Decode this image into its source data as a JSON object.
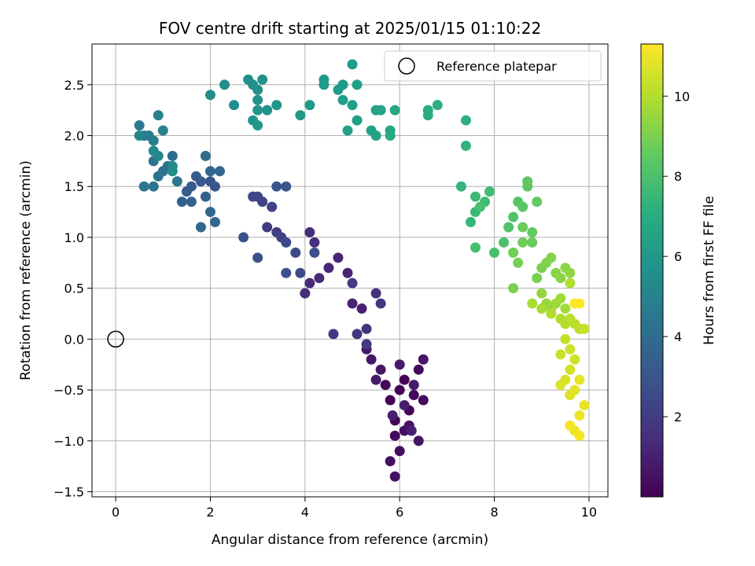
{
  "chart_data": {
    "type": "scatter",
    "title": "FOV centre drift starting at 2025/01/15 01:10:22",
    "xlabel": "Angular distance from reference (arcmin)",
    "ylabel": "Rotation from reference (arcmin)",
    "xlim": [
      -0.5,
      10.4
    ],
    "ylim": [
      -1.55,
      2.9
    ],
    "x_ticks": [
      0,
      2,
      4,
      6,
      8,
      10
    ],
    "x_tick_labels": [
      "0",
      "2",
      "4",
      "6",
      "8",
      "10"
    ],
    "y_ticks": [
      -1.5,
      -1.0,
      -0.5,
      0.0,
      0.5,
      1.0,
      1.5,
      2.0,
      2.5
    ],
    "y_tick_labels": [
      "−1.5",
      "−1.0",
      "−0.5",
      "0.0",
      "0.5",
      "1.0",
      "1.5",
      "2.0",
      "2.5"
    ],
    "grid": true,
    "legend": {
      "placement": "top-right",
      "entries": [
        "Reference platepar"
      ]
    },
    "reference_point": {
      "x": 0,
      "y": 0
    },
    "colorbar": {
      "label": "Hours from first FF file",
      "range": [
        0,
        11.3
      ],
      "ticks": [
        2,
        4,
        6,
        8,
        10
      ],
      "tick_labels": [
        "2",
        "4",
        "6",
        "8",
        "10"
      ],
      "colormap": "viridis"
    },
    "series": [
      {
        "hours_range": [
          0.0,
          1.0
        ],
        "points": [
          [
            6.0,
            -0.5
          ],
          [
            5.8,
            -0.6
          ],
          [
            6.2,
            -0.7
          ],
          [
            5.9,
            -0.8
          ],
          [
            6.1,
            -0.4
          ],
          [
            6.3,
            -0.55
          ],
          [
            5.7,
            -0.45
          ],
          [
            6.4,
            -0.3
          ],
          [
            6.5,
            -0.6
          ],
          [
            5.9,
            -0.95
          ],
          [
            6.0,
            -1.1
          ],
          [
            6.1,
            -0.9
          ],
          [
            5.8,
            -1.2
          ],
          [
            5.9,
            -1.35
          ],
          [
            6.2,
            -0.85
          ],
          [
            6.4,
            -1.0
          ],
          [
            6.5,
            -0.2
          ],
          [
            5.6,
            -0.3
          ],
          [
            5.4,
            -0.2
          ],
          [
            5.3,
            -0.1
          ],
          [
            5.5,
            -0.4
          ],
          [
            6.0,
            -0.25
          ],
          [
            6.3,
            -0.45
          ],
          [
            6.1,
            -0.65
          ],
          [
            5.85,
            -0.75
          ],
          [
            6.25,
            -0.9
          ]
        ]
      },
      {
        "hours_range": [
          1.0,
          2.0
        ],
        "points": [
          [
            5.2,
            0.3
          ],
          [
            5.0,
            0.35
          ],
          [
            4.9,
            0.65
          ],
          [
            4.7,
            0.8
          ],
          [
            4.5,
            0.7
          ],
          [
            4.3,
            0.6
          ],
          [
            4.1,
            0.55
          ],
          [
            4.0,
            0.45
          ],
          [
            4.2,
            0.95
          ],
          [
            4.1,
            1.05
          ],
          [
            5.5,
            0.45
          ],
          [
            5.6,
            0.35
          ],
          [
            5.3,
            0.1
          ],
          [
            5.1,
            0.05
          ],
          [
            4.6,
            0.05
          ],
          [
            5.3,
            -0.05
          ],
          [
            5.0,
            0.55
          ]
        ]
      },
      {
        "hours_range": [
          2.0,
          3.0
        ],
        "points": [
          [
            3.2,
            1.1
          ],
          [
            3.4,
            1.05
          ],
          [
            3.5,
            1.0
          ],
          [
            3.3,
            1.3
          ],
          [
            3.1,
            1.35
          ],
          [
            3.0,
            1.4
          ],
          [
            2.9,
            1.4
          ],
          [
            3.6,
            0.95
          ],
          [
            3.8,
            0.85
          ],
          [
            3.9,
            0.65
          ],
          [
            3.6,
            0.65
          ],
          [
            4.2,
            0.85
          ],
          [
            3.0,
            0.8
          ],
          [
            2.7,
            1.0
          ],
          [
            3.4,
            1.5
          ],
          [
            3.6,
            1.5
          ]
        ]
      },
      {
        "hours_range": [
          3.0,
          4.5
        ],
        "points": [
          [
            2.0,
            1.55
          ],
          [
            2.1,
            1.5
          ],
          [
            1.8,
            1.55
          ],
          [
            1.7,
            1.6
          ],
          [
            1.6,
            1.5
          ],
          [
            1.5,
            1.45
          ],
          [
            1.4,
            1.35
          ],
          [
            1.6,
            1.35
          ],
          [
            1.9,
            1.4
          ],
          [
            2.0,
            1.65
          ],
          [
            2.2,
            1.65
          ],
          [
            2.0,
            1.25
          ],
          [
            2.1,
            1.15
          ],
          [
            1.8,
            1.1
          ],
          [
            1.9,
            1.8
          ],
          [
            1.2,
            1.8
          ],
          [
            1.1,
            1.7
          ],
          [
            1.0,
            1.65
          ],
          [
            0.8,
            1.75
          ],
          [
            0.9,
            1.6
          ],
          [
            0.8,
            1.5
          ],
          [
            0.6,
            1.5
          ],
          [
            1.3,
            1.55
          ]
        ]
      },
      {
        "hours_range": [
          4.5,
          5.5
        ],
        "points": [
          [
            0.5,
            2.1
          ],
          [
            0.6,
            2.0
          ],
          [
            0.7,
            2.0
          ],
          [
            0.8,
            1.95
          ],
          [
            0.9,
            2.2
          ],
          [
            1.0,
            2.05
          ],
          [
            0.5,
            2.0
          ],
          [
            0.9,
            1.8
          ],
          [
            1.2,
            1.7
          ],
          [
            0.8,
            1.85
          ],
          [
            1.2,
            1.65
          ]
        ]
      },
      {
        "hours_range": [
          5.5,
          6.5
        ],
        "points": [
          [
            2.0,
            2.4
          ],
          [
            2.3,
            2.5
          ],
          [
            2.5,
            2.3
          ],
          [
            2.8,
            2.55
          ],
          [
            2.9,
            2.5
          ],
          [
            3.0,
            2.45
          ],
          [
            3.1,
            2.55
          ],
          [
            3.0,
            2.35
          ],
          [
            3.0,
            2.25
          ],
          [
            3.2,
            2.25
          ],
          [
            3.4,
            2.3
          ],
          [
            2.9,
            2.15
          ],
          [
            3.0,
            2.1
          ],
          [
            3.9,
            2.2
          ],
          [
            4.1,
            2.3
          ],
          [
            4.4,
            2.55
          ],
          [
            4.4,
            2.5
          ],
          [
            4.7,
            2.45
          ],
          [
            4.8,
            2.5
          ],
          [
            5.0,
            2.7
          ],
          [
            5.1,
            2.5
          ],
          [
            4.8,
            2.35
          ],
          [
            5.0,
            2.3
          ],
          [
            5.1,
            2.15
          ],
          [
            4.9,
            2.05
          ],
          [
            5.4,
            2.05
          ],
          [
            5.5,
            2.0
          ]
        ]
      },
      {
        "hours_range": [
          6.5,
          8.0
        ],
        "points": [
          [
            5.5,
            2.25
          ],
          [
            5.6,
            2.25
          ],
          [
            5.8,
            2.05
          ],
          [
            5.9,
            2.25
          ],
          [
            5.8,
            2.0
          ],
          [
            6.6,
            2.25
          ],
          [
            6.6,
            2.2
          ],
          [
            6.8,
            2.3
          ],
          [
            7.4,
            2.15
          ],
          [
            7.4,
            1.9
          ],
          [
            7.3,
            1.5
          ],
          [
            7.5,
            1.15
          ],
          [
            7.6,
            1.25
          ],
          [
            7.6,
            1.4
          ],
          [
            7.8,
            1.35
          ],
          [
            7.9,
            1.45
          ],
          [
            7.6,
            0.9
          ],
          [
            7.7,
            1.3
          ]
        ]
      },
      {
        "hours_range": [
          8.0,
          9.0
        ],
        "points": [
          [
            8.0,
            0.85
          ],
          [
            8.2,
            0.95
          ],
          [
            8.3,
            1.1
          ],
          [
            8.4,
            1.2
          ],
          [
            8.5,
            1.35
          ],
          [
            8.6,
            1.3
          ],
          [
            8.7,
            1.5
          ],
          [
            8.7,
            1.55
          ],
          [
            8.9,
            1.35
          ],
          [
            8.8,
            1.05
          ],
          [
            8.8,
            0.95
          ],
          [
            8.6,
            1.1
          ],
          [
            8.6,
            0.95
          ],
          [
            8.4,
            0.85
          ],
          [
            8.5,
            0.75
          ],
          [
            8.4,
            0.5
          ]
        ]
      },
      {
        "hours_range": [
          9.0,
          10.0
        ],
        "points": [
          [
            8.9,
            0.6
          ],
          [
            9.0,
            0.7
          ],
          [
            9.1,
            0.75
          ],
          [
            9.2,
            0.8
          ],
          [
            9.3,
            0.65
          ],
          [
            9.4,
            0.6
          ],
          [
            9.5,
            0.7
          ],
          [
            9.6,
            0.65
          ],
          [
            9.0,
            0.45
          ],
          [
            9.1,
            0.35
          ],
          [
            9.2,
            0.3
          ],
          [
            9.3,
            0.35
          ],
          [
            9.4,
            0.4
          ],
          [
            9.5,
            0.3
          ],
          [
            9.0,
            0.3
          ],
          [
            8.8,
            0.35
          ],
          [
            9.2,
            0.25
          ],
          [
            9.6,
            0.55
          ]
        ]
      },
      {
        "hours_range": [
          10.0,
          11.3
        ],
        "points": [
          [
            9.4,
            0.2
          ],
          [
            9.5,
            0.15
          ],
          [
            9.6,
            0.2
          ],
          [
            9.7,
            0.15
          ],
          [
            9.8,
            0.1
          ],
          [
            9.9,
            0.1
          ],
          [
            9.5,
            0.0
          ],
          [
            9.4,
            -0.15
          ],
          [
            9.6,
            -0.1
          ],
          [
            9.7,
            -0.2
          ],
          [
            9.6,
            -0.3
          ],
          [
            9.5,
            -0.4
          ],
          [
            9.4,
            -0.45
          ],
          [
            9.6,
            -0.55
          ],
          [
            9.7,
            -0.5
          ],
          [
            9.8,
            -0.4
          ],
          [
            9.9,
            -0.65
          ],
          [
            9.8,
            -0.75
          ],
          [
            9.7,
            -0.9
          ],
          [
            9.6,
            -0.85
          ],
          [
            9.8,
            -0.95
          ],
          [
            9.7,
            0.35
          ],
          [
            9.8,
            0.35
          ]
        ]
      }
    ]
  }
}
